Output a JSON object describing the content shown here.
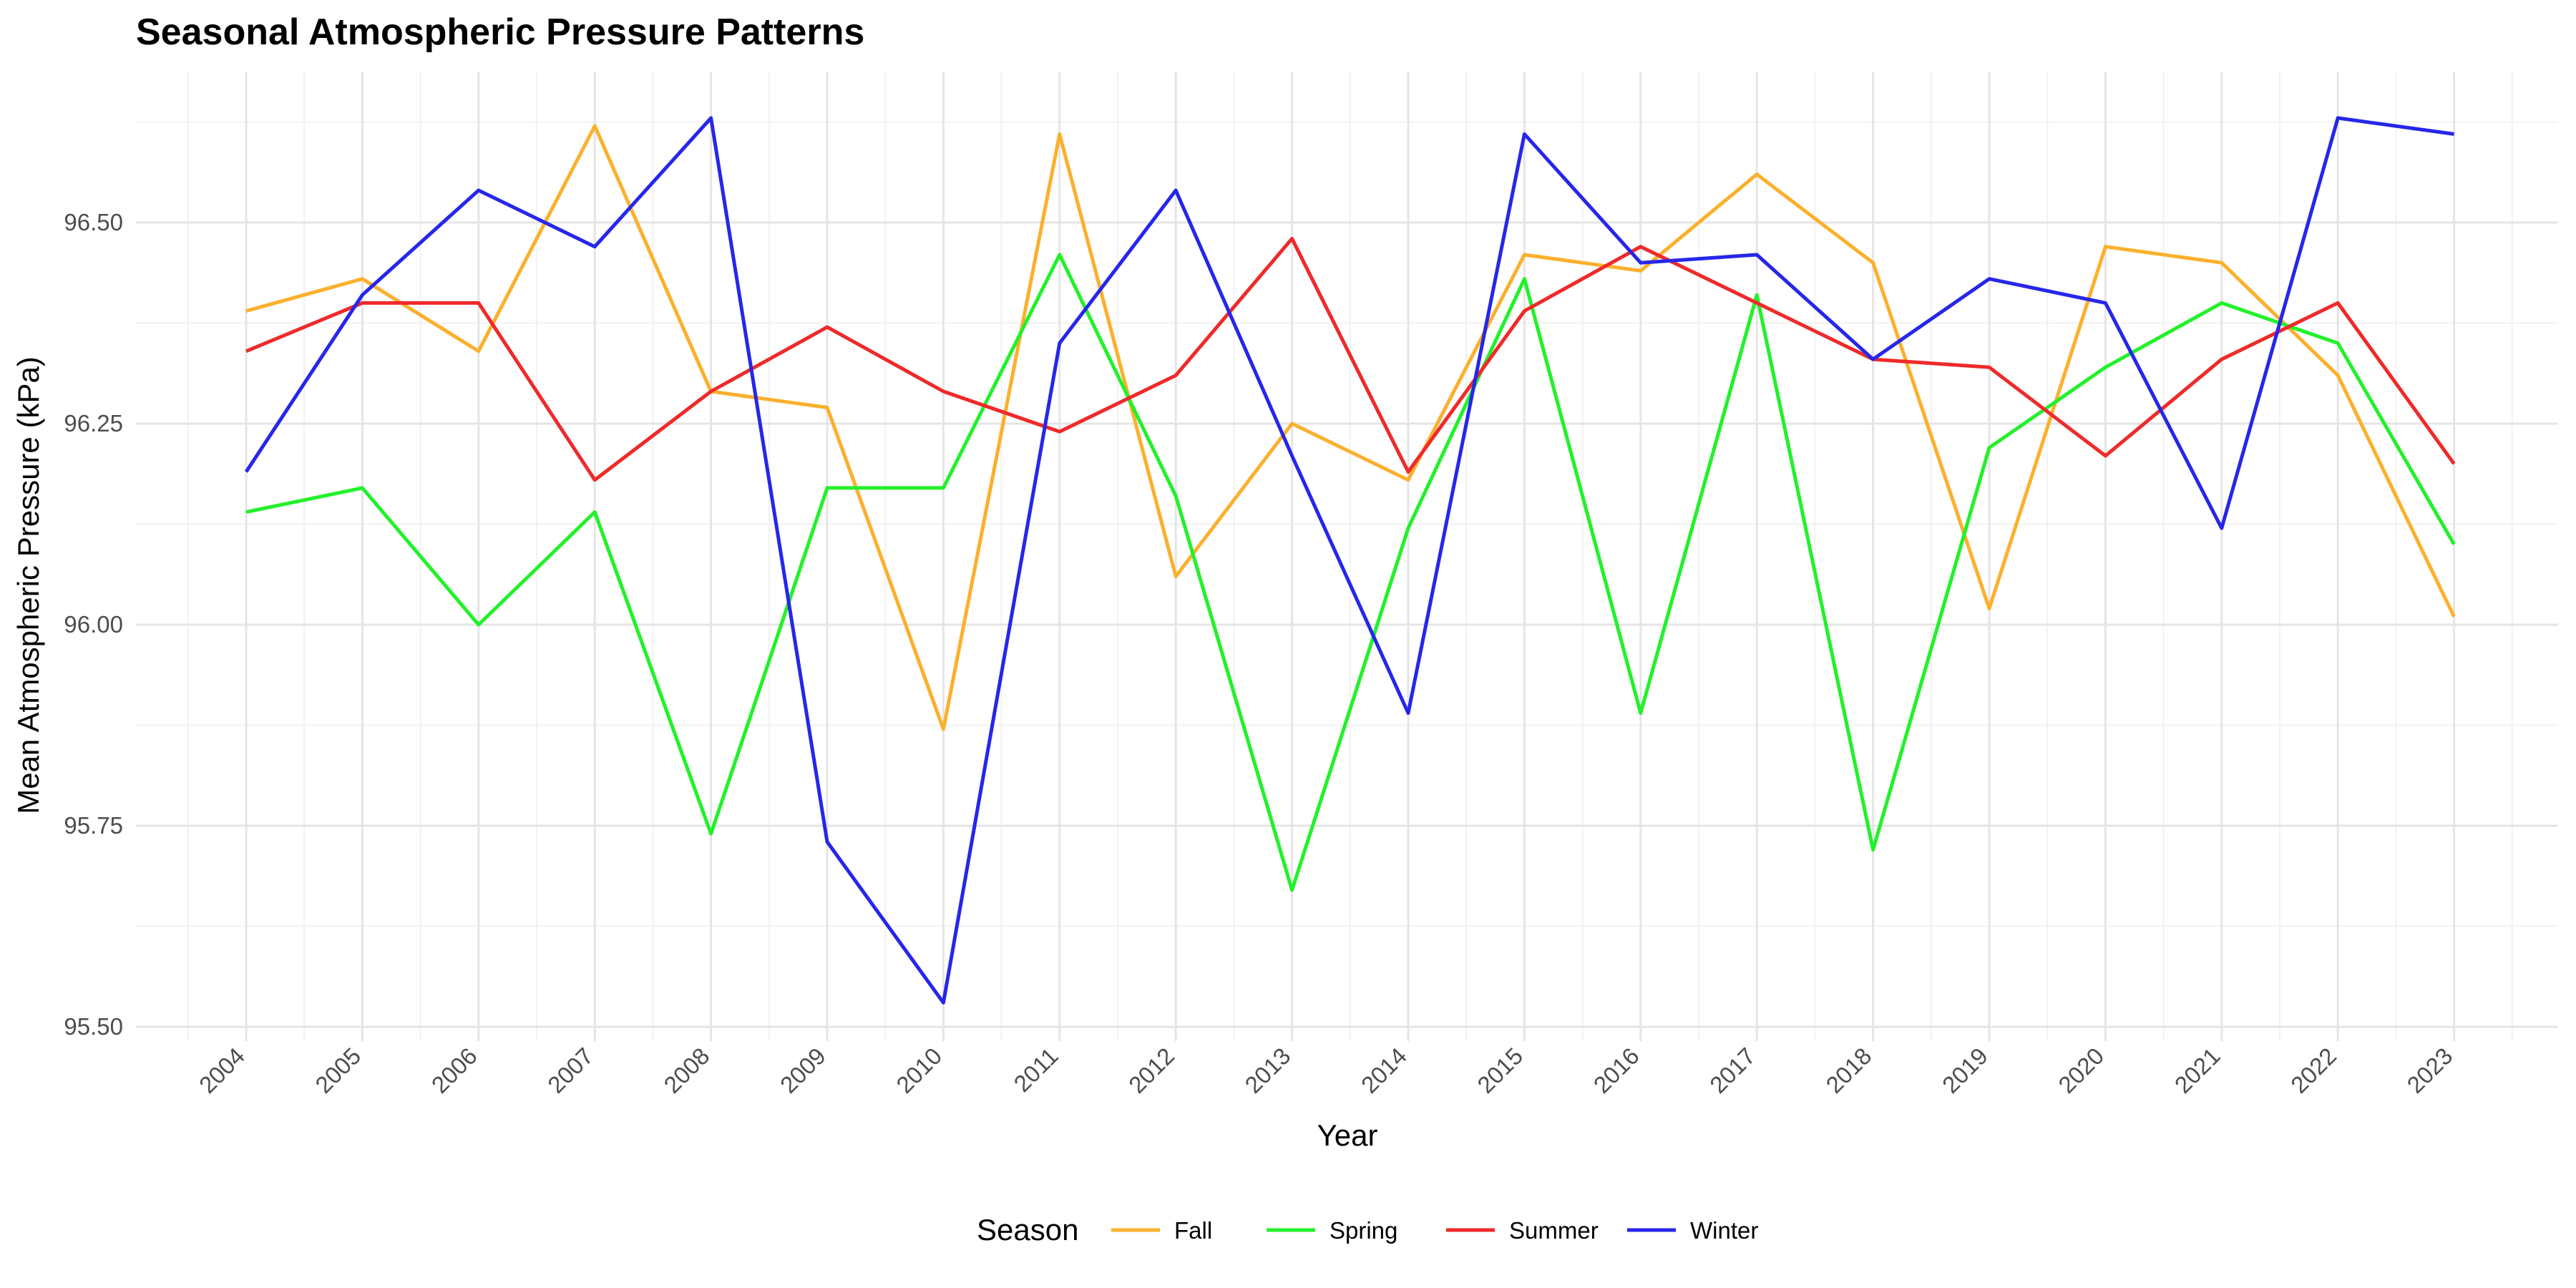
{
  "chart_data": {
    "type": "line",
    "title": "Seasonal Atmospheric Pressure Patterns",
    "xlabel": "Year",
    "ylabel": "Mean Atmospheric Pressure (kPa)",
    "categories": [
      "2004",
      "2005",
      "2006",
      "2007",
      "2008",
      "2009",
      "2010",
      "2011",
      "2012",
      "2013",
      "2014",
      "2015",
      "2016",
      "2017",
      "2018",
      "2019",
      "2020",
      "2021",
      "2022",
      "2023"
    ],
    "yticks": [
      "95.50",
      "95.75",
      "96.00",
      "96.25",
      "96.50"
    ],
    "ylim": [
      95.5,
      96.5
    ],
    "grid": true,
    "legend": {
      "title": "Season",
      "position": "bottom"
    },
    "series": [
      {
        "name": "Fall",
        "color": "#FBB02D",
        "values": [
          96.39,
          96.43,
          96.34,
          96.62,
          96.29,
          96.27,
          95.87,
          96.61,
          96.06,
          96.25,
          96.18,
          96.46,
          96.44,
          96.56,
          96.45,
          96.02,
          96.47,
          96.45,
          96.31,
          96.01
        ]
      },
      {
        "name": "Spring",
        "color": "#22F12A",
        "values": [
          96.14,
          96.17,
          96.0,
          96.14,
          95.74,
          96.17,
          96.17,
          96.46,
          96.16,
          95.67,
          96.12,
          96.43,
          95.89,
          96.41,
          95.72,
          96.22,
          96.32,
          96.4,
          96.35,
          96.1
        ]
      },
      {
        "name": "Summer",
        "color": "#EE2A2A",
        "values": [
          96.34,
          96.4,
          96.4,
          96.18,
          96.29,
          96.37,
          96.29,
          96.24,
          96.31,
          96.48,
          96.19,
          96.39,
          96.47,
          96.4,
          96.33,
          96.32,
          96.21,
          96.33,
          96.4,
          96.2
        ]
      },
      {
        "name": "Winter",
        "color": "#2626EA",
        "values": [
          96.19,
          96.41,
          96.54,
          96.47,
          96.63,
          95.73,
          95.53,
          96.35,
          96.54,
          96.21,
          95.89,
          96.61,
          96.45,
          96.46,
          96.33,
          96.43,
          96.4,
          96.12,
          96.63,
          96.61
        ]
      }
    ]
  }
}
